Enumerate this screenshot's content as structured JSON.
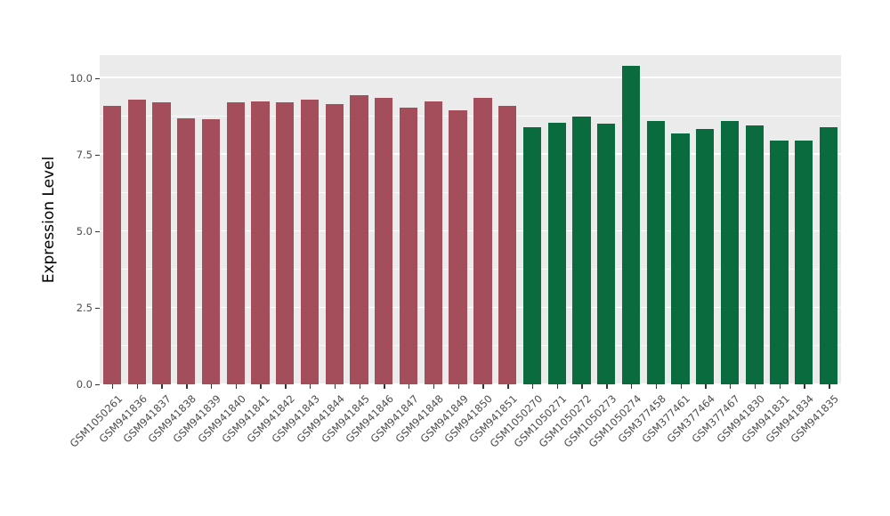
{
  "chart_data": {
    "type": "bar",
    "title": "",
    "xlabel": "",
    "ylabel": "Expression Level",
    "ylim": [
      0,
      10.75
    ],
    "yticks": [
      0.0,
      2.5,
      5.0,
      7.5,
      10.0
    ],
    "ytick_labels": [
      "0.0",
      "2.5",
      "5.0",
      "7.5",
      "10.0"
    ],
    "grid": "on",
    "legend_position": "none",
    "panel_background": "#EBEBEB",
    "group_colors": {
      "group1": "#A34E5A",
      "group2": "#0A6B3E"
    },
    "categories": [
      "GSM1050261",
      "GSM941836",
      "GSM941837",
      "GSM941838",
      "GSM941839",
      "GSM941840",
      "GSM941841",
      "GSM941842",
      "GSM941843",
      "GSM941844",
      "GSM941845",
      "GSM941846",
      "GSM941847",
      "GSM941848",
      "GSM941849",
      "GSM941850",
      "GSM941851",
      "GSM1050270",
      "GSM1050271",
      "GSM1050272",
      "GSM1050273",
      "GSM1050274",
      "GSM377458",
      "GSM377461",
      "GSM377464",
      "GSM377467",
      "GSM941830",
      "GSM941831",
      "GSM941834",
      "GSM941835"
    ],
    "values": [
      9.1,
      9.3,
      9.2,
      8.7,
      8.65,
      9.2,
      9.25,
      9.2,
      9.3,
      9.15,
      9.45,
      9.35,
      9.05,
      9.25,
      8.95,
      9.35,
      9.1,
      8.4,
      8.55,
      8.75,
      8.5,
      10.4,
      8.6,
      8.2,
      8.35,
      8.6,
      8.45,
      7.95,
      7.95,
      8.4
    ],
    "groups": [
      "group1",
      "group1",
      "group1",
      "group1",
      "group1",
      "group1",
      "group1",
      "group1",
      "group1",
      "group1",
      "group1",
      "group1",
      "group1",
      "group1",
      "group1",
      "group1",
      "group1",
      "group2",
      "group2",
      "group2",
      "group2",
      "group2",
      "group2",
      "group2",
      "group2",
      "group2",
      "group2",
      "group2",
      "group2",
      "group2"
    ]
  }
}
